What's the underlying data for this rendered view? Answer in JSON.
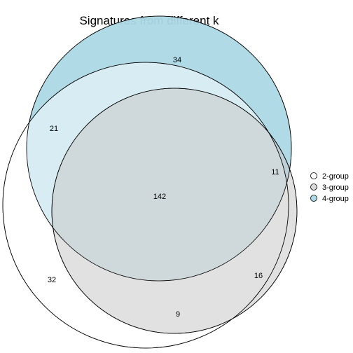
{
  "title": "Signatures from different k",
  "sets": [
    {
      "key": "2",
      "label": "2-group",
      "color": "#ffffff"
    },
    {
      "key": "3",
      "label": "3-group",
      "color": "#d9d9d9"
    },
    {
      "key": "4",
      "label": "4-group",
      "color": "#add8e6"
    }
  ],
  "regions": {
    "only_2": "32",
    "only_3": "",
    "only_4": "34",
    "2_and_3": "9",
    "2_and_4": "21",
    "3_and_4": "11",
    "3_only_lower": "16",
    "all_three": "142"
  }
}
